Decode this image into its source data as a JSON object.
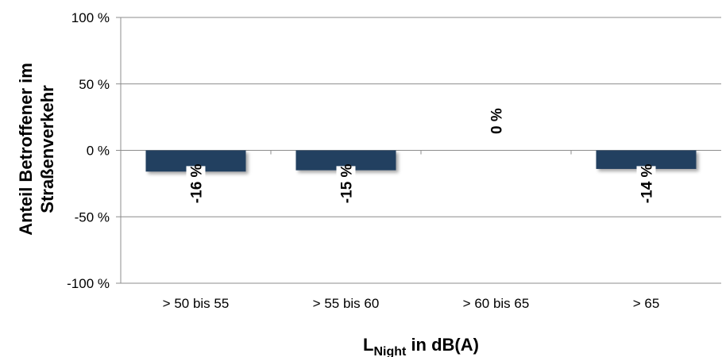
{
  "chart_data": {
    "type": "bar",
    "categories": [
      "> 50 bis 55",
      "> 55 bis 60",
      "> 60 bis 65",
      "> 65"
    ],
    "values": [
      -16,
      -15,
      0,
      -14
    ],
    "data_labels": [
      "-16 %",
      "-15 %",
      "0 %",
      "-14 %"
    ],
    "ylim": [
      -100,
      100
    ],
    "yticks": [
      100,
      50,
      0,
      -50,
      -100
    ],
    "ytick_labels": [
      "100 %",
      "50 %",
      "0 %",
      "-50 %",
      "-100 %"
    ],
    "ylabel_line1": "Anteil Betroffener im",
    "ylabel_line2": "Straßenverkehr",
    "xlabel_main": "L",
    "xlabel_sub": "Night",
    "xlabel_rest": " in dB(A)",
    "bar_color": "#243F60",
    "grid": true
  }
}
